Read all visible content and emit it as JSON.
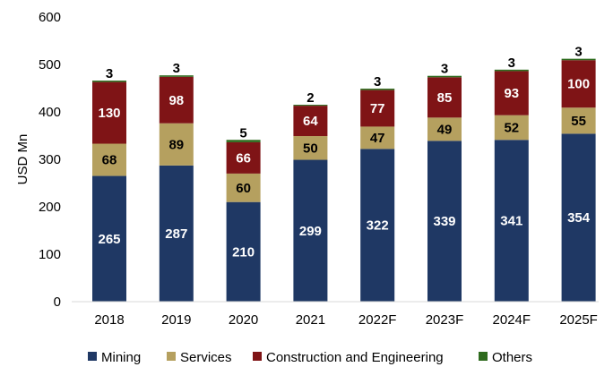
{
  "chart_data": {
    "type": "bar",
    "stacked": true,
    "title": "",
    "xlabel": "",
    "ylabel": "USD Mn",
    "ylim": [
      0,
      600
    ],
    "yticks": [
      0,
      100,
      200,
      300,
      400,
      500,
      600
    ],
    "grid": false,
    "legend_position": "bottom",
    "categories": [
      "2018",
      "2019",
      "2020",
      "2021",
      "2022F",
      "2023F",
      "2024F",
      "2025F"
    ],
    "series": [
      {
        "name": "Mining",
        "color": "#1f3864",
        "label_color": "#ffffff",
        "values": [
          265,
          287,
          210,
          299,
          322,
          339,
          341,
          354
        ]
      },
      {
        "name": "Services",
        "color": "#b5a05f",
        "label_color": "#000000",
        "values": [
          68,
          89,
          60,
          50,
          47,
          49,
          52,
          55
        ]
      },
      {
        "name": "Construction and Engineering",
        "color": "#7f1416",
        "label_color": "#ffffff",
        "values": [
          130,
          98,
          66,
          64,
          77,
          85,
          93,
          100
        ]
      },
      {
        "name": "Others",
        "color": "#2e6b1e",
        "label_color": "#000000",
        "values": [
          3,
          3,
          5,
          2,
          3,
          3,
          3,
          3
        ]
      }
    ]
  }
}
